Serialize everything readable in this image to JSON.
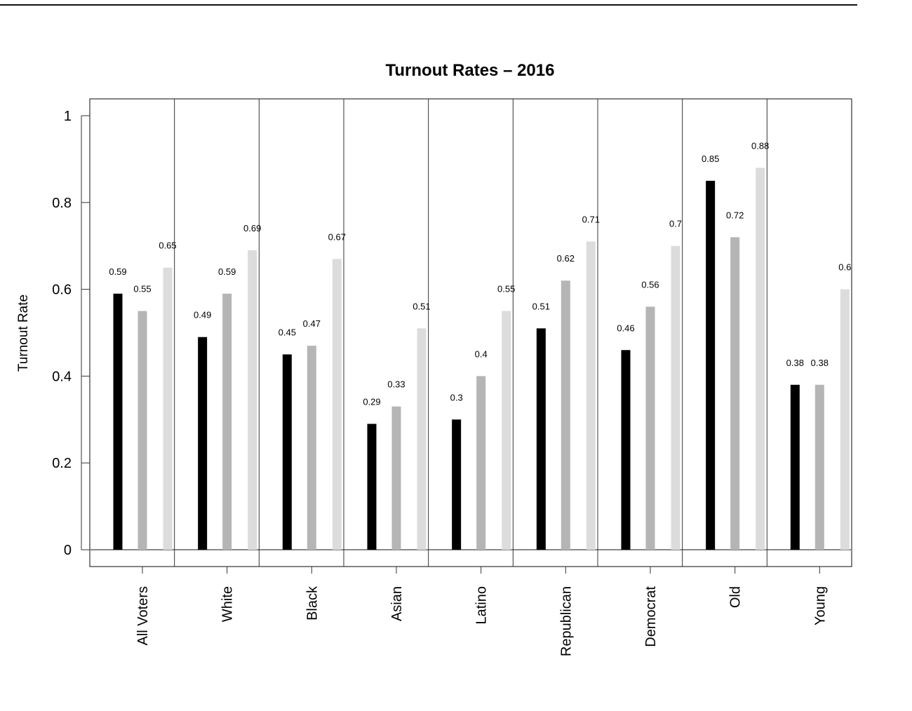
{
  "chart_data": {
    "type": "bar",
    "title": "Turnout Rates – 2016",
    "ylabel": "Turnout Rate",
    "xlabel": "",
    "ylim": [
      0,
      1
    ],
    "yticks": [
      0,
      0.2,
      0.4,
      0.6,
      0.8,
      1
    ],
    "ytick_labels": [
      "0",
      "0.2",
      "0.4",
      "0.6",
      "0.8",
      "1"
    ],
    "categories": [
      "All Voters",
      "White",
      "Black",
      "Asian",
      "Latino",
      "Republican",
      "Democrat",
      "Old",
      "Young"
    ],
    "series": [
      {
        "color": "#000000",
        "values": [
          0.59,
          0.49,
          0.45,
          0.29,
          0.3,
          0.51,
          0.46,
          0.85,
          0.38
        ],
        "labels": [
          "0.59",
          "0.49",
          "0.45",
          "0.29",
          "0.3",
          "0.51",
          "0.46",
          "0.85",
          "0.38"
        ]
      },
      {
        "color": "#b5b5b5",
        "values": [
          0.55,
          0.59,
          0.47,
          0.33,
          0.4,
          0.62,
          0.56,
          0.72,
          0.38
        ],
        "labels": [
          "0.55",
          "0.59",
          "0.47",
          "0.33",
          "0.4",
          "0.62",
          "0.56",
          "0.72",
          "0.38"
        ]
      },
      {
        "color": "#dcdcdc",
        "values": [
          0.65,
          0.69,
          0.67,
          0.51,
          0.55,
          0.71,
          0.7,
          0.88,
          0.6
        ],
        "labels": [
          "0.65",
          "0.69",
          "0.67",
          "0.51",
          "0.55",
          "0.71",
          "0.7",
          "0.88",
          "0.6"
        ]
      }
    ],
    "grid": false,
    "legend": "none"
  }
}
